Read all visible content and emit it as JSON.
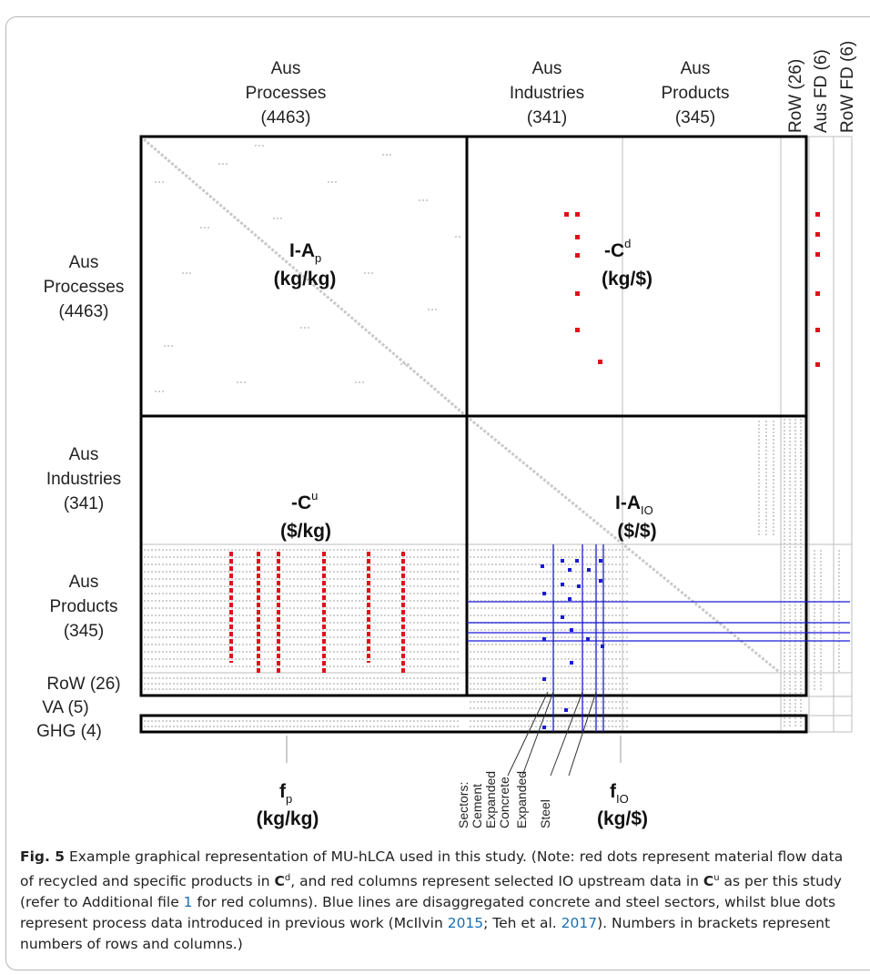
{
  "column_headers": {
    "processes": [
      "Aus",
      "Processes",
      "(4463)"
    ],
    "industries": [
      "Aus",
      "Industries",
      "(341)"
    ],
    "products": [
      "Aus",
      "Products",
      "(345)"
    ],
    "row": "RoW (26)",
    "aus_fd": "Aus FD (6)",
    "row_fd": "RoW FD (6)"
  },
  "row_headers": {
    "processes": [
      "Aus",
      "Processes",
      "(4463)"
    ],
    "industries": [
      "Aus",
      "Industries",
      "(341)"
    ],
    "products": [
      "Aus",
      "Products",
      "(345)"
    ],
    "row": "RoW (26)",
    "va": "VA (5)",
    "ghg": "GHG (4)"
  },
  "blocks": {
    "ap": {
      "main": "I-A",
      "sub": "p",
      "unit": "(kg/kg)"
    },
    "cd": {
      "main": "-C",
      "sup": "d",
      "unit": "(kg/$)"
    },
    "cu": {
      "main": "-C",
      "sup": "u",
      "unit": "($/kg)"
    },
    "aio": {
      "main": "I-A",
      "sub": "IO",
      "unit": "($/$)"
    }
  },
  "bottom_labels": {
    "fp": {
      "main": "f",
      "sub": "p",
      "unit": "(kg/kg)"
    },
    "fio": {
      "main": "f",
      "sub": "IO",
      "unit": "(kg/$)"
    }
  },
  "sectors": [
    "Sectors:",
    "Cement",
    "Expanded",
    "Concrete",
    "Expanded",
    "Steel"
  ],
  "caption": {
    "fig": "Fig. 5",
    "p1": "  Example graphical representation of MU-hLCA used in this study. (Note: red dots represent material flow data of recycled and specific products in ",
    "p2": ", and red columns represent selected IO upstream data in ",
    "p3": " as per this study (refer to Additional file ",
    "ref1": "1",
    "p4": " for red columns). Blue lines are disaggregated concrete and steel sectors, whilst blue dots represent process data introduced in previous work (McIlvin ",
    "ref2": "2015",
    "p5": "; Teh et al. ",
    "ref3": "2017",
    "p6": "). Numbers in brackets represent numbers of rows and columns.)"
  },
  "colors": {
    "red": "#e0101a",
    "blue": "#1a1ad6",
    "grid": "#bdbdbd",
    "border": "#000000"
  }
}
